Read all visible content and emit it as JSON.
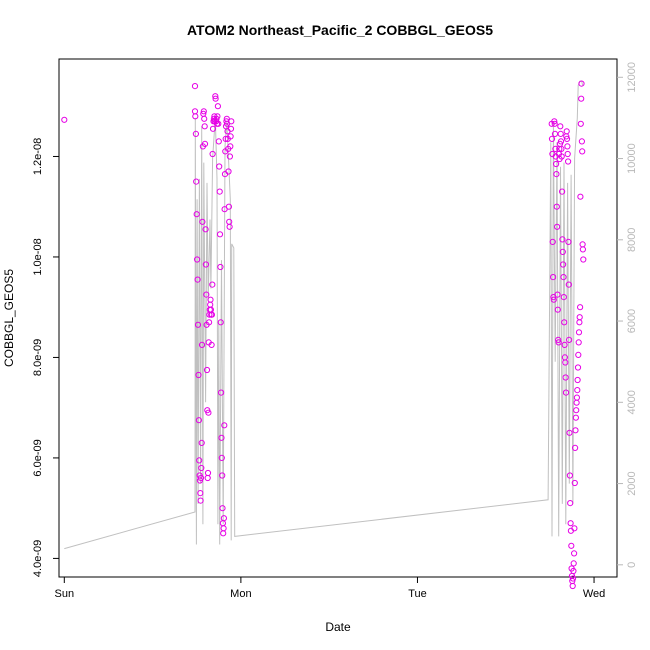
{
  "chart_data": {
    "type": "scatter",
    "title": "ATOM2 Northeast_Pacific_2 COBBGL_GEOS5",
    "xlabel": "Date",
    "ylabel": "COBBGL_GEOS5",
    "x_unit": "days since Sunday 00:00",
    "xlim": [
      -0.03,
      3.13
    ],
    "x_ticks": [
      {
        "value": 0,
        "label": "Sun"
      },
      {
        "value": 1,
        "label": "Mon"
      },
      {
        "value": 2,
        "label": "Tue"
      },
      {
        "value": 3,
        "label": "Wed"
      }
    ],
    "ylim": [
      3.63e-09,
      1.394e-08
    ],
    "y_ticks": [
      {
        "value": 4e-09,
        "label": "4.0e-09"
      },
      {
        "value": 6e-09,
        "label": "6.0e-09"
      },
      {
        "value": 8e-09,
        "label": "8.0e-09"
      },
      {
        "value": 1e-08,
        "label": "1.0e-08"
      },
      {
        "value": 1.2e-08,
        "label": "1.2e-08"
      }
    ],
    "y2lim": [
      -300,
      12450
    ],
    "y2_ticks": [
      {
        "value": 0,
        "label": "0"
      },
      {
        "value": 2000,
        "label": "2000"
      },
      {
        "value": 4000,
        "label": "4000"
      },
      {
        "value": 6000,
        "label": "6000"
      },
      {
        "value": 8000,
        "label": "8000"
      },
      {
        "value": 10000,
        "label": "10000"
      },
      {
        "value": 12000,
        "label": "12000"
      }
    ],
    "grid": false,
    "legend": "none",
    "colors": {
      "points": "#e600e6",
      "line": "#c0c0c0",
      "axis": "#000000",
      "right_axis": "#b8b8b8"
    },
    "series": [
      {
        "type": "scatter",
        "axis": "left",
        "points": [
          [
            0.0,
            1.273e-08
          ],
          [
            0.74,
            1.34e-08
          ],
          [
            0.74,
            1.29e-08
          ],
          [
            0.742,
            1.28e-08
          ],
          [
            0.745,
            1.245e-08
          ],
          [
            0.747,
            1.15e-08
          ],
          [
            0.75,
            1.085e-08
          ],
          [
            0.752,
            9.95e-09
          ],
          [
            0.755,
            9.55e-09
          ],
          [
            0.757,
            8.65e-09
          ],
          [
            0.76,
            7.65e-09
          ],
          [
            0.762,
            6.75e-09
          ],
          [
            0.764,
            5.95e-09
          ],
          [
            0.766,
            5.65e-09
          ],
          [
            0.768,
            5.55e-09
          ],
          [
            0.77,
            5.3e-09
          ],
          [
            0.772,
            5.15e-09
          ],
          [
            0.774,
            5.6e-09
          ],
          [
            0.776,
            5.8e-09
          ],
          [
            0.778,
            6.3e-09
          ],
          [
            0.78,
            8.25e-09
          ],
          [
            0.782,
            1.07e-08
          ],
          [
            0.785,
            1.22e-08
          ],
          [
            0.787,
            1.285e-08
          ],
          [
            0.79,
            1.29e-08
          ],
          [
            0.792,
            1.275e-08
          ],
          [
            0.795,
            1.26e-08
          ],
          [
            0.797,
            1.225e-08
          ],
          [
            0.8,
            1.055e-08
          ],
          [
            0.802,
            9.85e-09
          ],
          [
            0.804,
            9.25e-09
          ],
          [
            0.806,
            8.65e-09
          ],
          [
            0.808,
            7.75e-09
          ],
          [
            0.81,
            6.95e-09
          ],
          [
            0.812,
            5.6e-09
          ],
          [
            0.814,
            5.7e-09
          ],
          [
            0.816,
            6.9e-09
          ],
          [
            0.818,
            8.3e-09
          ],
          [
            0.82,
            8.7e-09
          ],
          [
            0.822,
            8.85e-09
          ],
          [
            0.824,
            8.95e-09
          ],
          [
            0.826,
            9.05e-09
          ],
          [
            0.828,
            9.15e-09
          ],
          [
            0.83,
            8.95e-09
          ],
          [
            0.832,
            8.85e-09
          ],
          [
            0.834,
            8.25e-09
          ],
          [
            0.836,
            8.85e-09
          ],
          [
            0.838,
            9.45e-09
          ],
          [
            0.84,
            1.205e-08
          ],
          [
            0.842,
            1.255e-08
          ],
          [
            0.845,
            1.27e-08
          ],
          [
            0.847,
            1.275e-08
          ],
          [
            0.85,
            1.28e-08
          ],
          [
            0.852,
            1.27e-08
          ],
          [
            0.855,
            1.32e-08
          ],
          [
            0.857,
            1.315e-08
          ],
          [
            0.86,
            1.27e-08
          ],
          [
            0.862,
            1.275e-08
          ],
          [
            0.865,
            1.265e-08
          ],
          [
            0.867,
            1.28e-08
          ],
          [
            0.87,
            1.3e-08
          ],
          [
            0.872,
            1.265e-08
          ],
          [
            0.875,
            1.23e-08
          ],
          [
            0.877,
            1.18e-08
          ],
          [
            0.88,
            1.13e-08
          ],
          [
            0.882,
            1.045e-08
          ],
          [
            0.884,
            9.8e-09
          ],
          [
            0.886,
            8.7e-09
          ],
          [
            0.888,
            7.3e-09
          ],
          [
            0.89,
            6.4e-09
          ],
          [
            0.892,
            6e-09
          ],
          [
            0.894,
            5.65e-09
          ],
          [
            0.896,
            5e-09
          ],
          [
            0.898,
            4.7e-09
          ],
          [
            0.9,
            4.5e-09
          ],
          [
            0.902,
            4.6e-09
          ],
          [
            0.904,
            4.8e-09
          ],
          [
            0.906,
            6.65e-09
          ],
          [
            0.908,
            1.095e-08
          ],
          [
            0.91,
            1.165e-08
          ],
          [
            0.912,
            1.21e-08
          ],
          [
            0.914,
            1.235e-08
          ],
          [
            0.916,
            1.26e-08
          ],
          [
            0.918,
            1.27e-08
          ],
          [
            0.92,
            1.275e-08
          ],
          [
            0.922,
            1.265e-08
          ],
          [
            0.924,
            1.25e-08
          ],
          [
            0.926,
            1.235e-08
          ],
          [
            0.928,
            1.215e-08
          ],
          [
            0.93,
            1.17e-08
          ],
          [
            0.932,
            1.1e-08
          ],
          [
            0.934,
            1.07e-08
          ],
          [
            0.936,
            1.06e-08
          ],
          [
            0.938,
            1.2e-08
          ],
          [
            0.94,
            1.22e-08
          ],
          [
            0.942,
            1.24e-08
          ],
          [
            0.944,
            1.255e-08
          ],
          [
            0.946,
            1.27e-08
          ],
          [
            2.76,
            1.265e-08
          ],
          [
            2.762,
            1.235e-08
          ],
          [
            2.764,
            1.205e-08
          ],
          [
            2.766,
            1.03e-08
          ],
          [
            2.768,
            9.6e-09
          ],
          [
            2.77,
            9.2e-09
          ],
          [
            2.772,
            9.15e-09
          ],
          [
            2.775,
            1.27e-08
          ],
          [
            2.777,
            1.265e-08
          ],
          [
            2.779,
            1.245e-08
          ],
          [
            2.781,
            1.215e-08
          ],
          [
            2.783,
            1.2e-08
          ],
          [
            2.785,
            1.185e-08
          ],
          [
            2.787,
            1.165e-08
          ],
          [
            2.789,
            1.1e-08
          ],
          [
            2.791,
            1.06e-08
          ],
          [
            2.793,
            9.25e-09
          ],
          [
            2.795,
            8.95e-09
          ],
          [
            2.797,
            8.35e-09
          ],
          [
            2.799,
            8.3e-09
          ],
          [
            2.801,
            1.205e-08
          ],
          [
            2.803,
            1.215e-08
          ],
          [
            2.805,
            1.195e-08
          ],
          [
            2.807,
            1.225e-08
          ],
          [
            2.809,
            1.26e-08
          ],
          [
            2.811,
            1.245e-08
          ],
          [
            2.813,
            1.23e-08
          ],
          [
            2.815,
            1.215e-08
          ],
          [
            2.817,
            1.2e-08
          ],
          [
            2.819,
            1.13e-08
          ],
          [
            2.821,
            1.035e-08
          ],
          [
            2.823,
            1.01e-08
          ],
          [
            2.825,
            9.85e-09
          ],
          [
            2.827,
            9.6e-09
          ],
          [
            2.829,
            9.2e-09
          ],
          [
            2.831,
            8.7e-09
          ],
          [
            2.833,
            8.25e-09
          ],
          [
            2.835,
            8e-09
          ],
          [
            2.837,
            7.9e-09
          ],
          [
            2.839,
            7.6e-09
          ],
          [
            2.841,
            7.3e-09
          ],
          [
            2.843,
            1.24e-08
          ],
          [
            2.845,
            1.25e-08
          ],
          [
            2.847,
            1.235e-08
          ],
          [
            2.849,
            1.22e-08
          ],
          [
            2.851,
            1.205e-08
          ],
          [
            2.853,
            1.19e-08
          ],
          [
            2.855,
            1.03e-08
          ],
          [
            2.857,
            9.45e-09
          ],
          [
            2.859,
            8.35e-09
          ],
          [
            2.861,
            6.5e-09
          ],
          [
            2.863,
            5.65e-09
          ],
          [
            2.865,
            5.1e-09
          ],
          [
            2.867,
            4.7e-09
          ],
          [
            2.869,
            4.55e-09
          ],
          [
            2.871,
            4.25e-09
          ],
          [
            2.873,
            3.8e-09
          ],
          [
            2.875,
            3.65e-09
          ],
          [
            2.877,
            3.55e-09
          ],
          [
            2.879,
            3.45e-09
          ],
          [
            2.881,
            3.6e-09
          ],
          [
            2.883,
            3.75e-09
          ],
          [
            2.885,
            3.9e-09
          ],
          [
            2.887,
            4.1e-09
          ],
          [
            2.889,
            4.6e-09
          ],
          [
            2.891,
            5.5e-09
          ],
          [
            2.893,
            6.2e-09
          ],
          [
            2.895,
            6.55e-09
          ],
          [
            2.897,
            6.8e-09
          ],
          [
            2.899,
            6.95e-09
          ],
          [
            2.901,
            7.1e-09
          ],
          [
            2.903,
            7.2e-09
          ],
          [
            2.905,
            7.35e-09
          ],
          [
            2.907,
            7.55e-09
          ],
          [
            2.909,
            7.8e-09
          ],
          [
            2.911,
            8.05e-09
          ],
          [
            2.913,
            8.3e-09
          ],
          [
            2.915,
            8.5e-09
          ],
          [
            2.917,
            8.7e-09
          ],
          [
            2.919,
            8.8e-09
          ],
          [
            2.921,
            9e-09
          ],
          [
            2.923,
            1.12e-08
          ],
          [
            2.925,
            1.265e-08
          ],
          [
            2.927,
            1.315e-08
          ],
          [
            2.929,
            1.345e-08
          ],
          [
            2.931,
            1.23e-08
          ],
          [
            2.933,
            1.21e-08
          ],
          [
            2.935,
            1.025e-08
          ],
          [
            2.937,
            1.015e-08
          ],
          [
            2.939,
            9.95e-09
          ]
        ]
      },
      {
        "type": "line",
        "axis": "right",
        "points": [
          [
            0.0,
            400
          ],
          [
            0.74,
            1300
          ],
          [
            0.742,
            11000
          ],
          [
            0.748,
            500
          ],
          [
            0.752,
            9000
          ],
          [
            0.758,
            1500
          ],
          [
            0.765,
            9500
          ],
          [
            0.772,
            2000
          ],
          [
            0.778,
            10800
          ],
          [
            0.785,
            1000
          ],
          [
            0.79,
            9900
          ],
          [
            0.8,
            4000
          ],
          [
            0.808,
            9400
          ],
          [
            0.815,
            6500
          ],
          [
            0.825,
            8500
          ],
          [
            0.83,
            6800
          ],
          [
            0.84,
            10000
          ],
          [
            0.855,
            11000
          ],
          [
            0.865,
            9500
          ],
          [
            0.87,
            1000
          ],
          [
            0.875,
            6000
          ],
          [
            0.88,
            500
          ],
          [
            0.89,
            7500
          ],
          [
            0.9,
            1000
          ],
          [
            0.91,
            10300
          ],
          [
            0.92,
            10900
          ],
          [
            0.93,
            10000
          ],
          [
            0.94,
            9000
          ],
          [
            0.945,
            600
          ],
          [
            0.948,
            7900
          ],
          [
            0.96,
            7800
          ],
          [
            0.965,
            700
          ],
          [
            2.74,
            1600
          ],
          [
            2.755,
            10400
          ],
          [
            2.762,
            700
          ],
          [
            2.77,
            10900
          ],
          [
            2.78,
            5000
          ],
          [
            2.79,
            10400
          ],
          [
            2.8,
            700
          ],
          [
            2.81,
            9800
          ],
          [
            2.82,
            1500
          ],
          [
            2.83,
            9900
          ],
          [
            2.84,
            1000
          ],
          [
            2.85,
            9400
          ],
          [
            2.86,
            2000
          ],
          [
            2.87,
            9600
          ],
          [
            2.88,
            1500
          ],
          [
            2.89,
            10000
          ],
          [
            2.905,
            11000
          ],
          [
            2.91,
            11800
          ],
          [
            2.92,
            11900
          ],
          [
            2.93,
            11900
          ],
          [
            2.935,
            11800
          ]
        ]
      }
    ]
  }
}
